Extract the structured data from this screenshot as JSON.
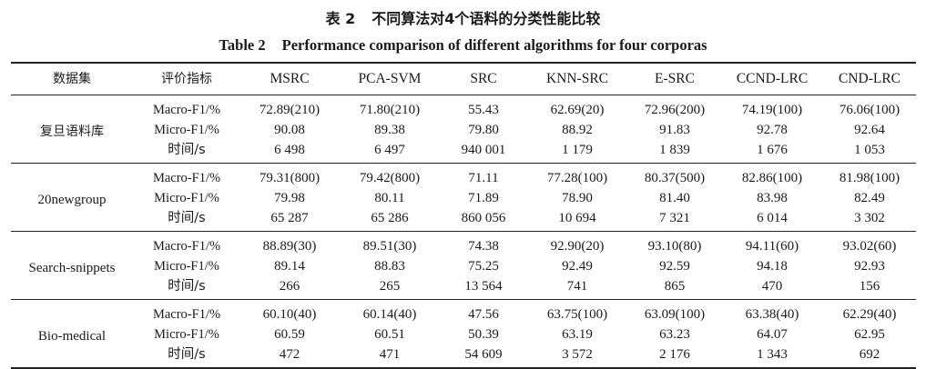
{
  "caption": {
    "zh_number": "表 2",
    "zh_title": "不同算法对4个语料的分类性能比较",
    "en_number": "Table 2",
    "en_title": "Performance comparison of different algorithms for four corporas"
  },
  "headers": [
    "数据集",
    "评价指标",
    "MSRC",
    "PCA-SVM",
    "SRC",
    "KNN-SRC",
    "E-SRC",
    "CCND-LRC",
    "CND-LRC"
  ],
  "groups": [
    {
      "dataset": "复旦语料库",
      "rows": [
        {
          "metric": "Macro-F1/%",
          "values": [
            "72.89(210)",
            "71.80(210)",
            "55.43",
            "62.69(20)",
            "72.96(200)",
            "74.19(100)",
            "76.06(100)"
          ]
        },
        {
          "metric": "Micro-F1/%",
          "values": [
            "90.08",
            "89.38",
            "79.80",
            "88.92",
            "91.83",
            "92.78",
            "92.64"
          ]
        },
        {
          "metric": "时间/s",
          "values": [
            "6 498",
            "6 497",
            "940 001",
            "1 179",
            "1 839",
            "1 676",
            "1 053"
          ]
        }
      ]
    },
    {
      "dataset": "20newgroup",
      "rows": [
        {
          "metric": "Macro-F1/%",
          "values": [
            "79.31(800)",
            "79.42(800)",
            "71.11",
            "77.28(100)",
            "80.37(500)",
            "82.86(100)",
            "81.98(100)"
          ]
        },
        {
          "metric": "Micro-F1/%",
          "values": [
            "79.98",
            "80.11",
            "71.89",
            "78.90",
            "81.40",
            "83.98",
            "82.49"
          ]
        },
        {
          "metric": "时间/s",
          "values": [
            "65 287",
            "65 286",
            "860 056",
            "10 694",
            "7 321",
            "6 014",
            "3 302"
          ]
        }
      ]
    },
    {
      "dataset": "Search-snippets",
      "rows": [
        {
          "metric": "Macro-F1/%",
          "values": [
            "88.89(30)",
            "89.51(30)",
            "74.38",
            "92.90(20)",
            "93.10(80)",
            "94.11(60)",
            "93.02(60)"
          ]
        },
        {
          "metric": "Micro-F1/%",
          "values": [
            "89.14",
            "88.83",
            "75.25",
            "92.49",
            "92.59",
            "94.18",
            "92.93"
          ]
        },
        {
          "metric": "时间/s",
          "values": [
            "266",
            "265",
            "13 564",
            "741",
            "865",
            "470",
            "156"
          ]
        }
      ]
    },
    {
      "dataset": "Bio-medical",
      "rows": [
        {
          "metric": "Macro-F1/%",
          "values": [
            "60.10(40)",
            "60.14(40)",
            "47.56",
            "63.75(100)",
            "63.09(100)",
            "63.38(40)",
            "62.29(40)"
          ]
        },
        {
          "metric": "Micro-F1/%",
          "values": [
            "60.59",
            "60.51",
            "50.39",
            "63.19",
            "63.23",
            "64.07",
            "62.95"
          ]
        },
        {
          "metric": "时间/s",
          "values": [
            "472",
            "471",
            "54 609",
            "3 572",
            "2 176",
            "1 343",
            "692"
          ]
        }
      ]
    }
  ]
}
